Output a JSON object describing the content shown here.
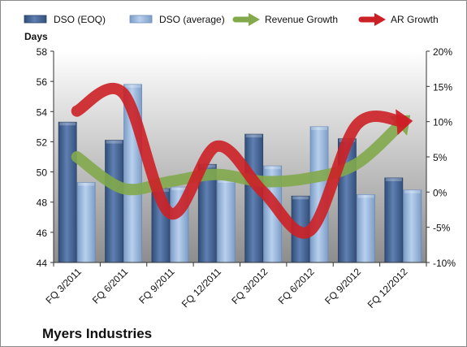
{
  "chart_data": {
    "type": "bar",
    "title": "",
    "company": "Myers Industries",
    "ylabel": "Days",
    "ylim": [
      44,
      58
    ],
    "yticks": [
      44,
      46,
      48,
      50,
      52,
      54,
      56,
      58
    ],
    "y2lim": [
      -10,
      20
    ],
    "y2ticks": [
      "-10%",
      "-5%",
      "0%",
      "5%",
      "10%",
      "15%",
      "20%"
    ],
    "categories": [
      "FQ 3/2011",
      "FQ 6/2011",
      "FQ 9/2011",
      "FQ 12/2011",
      "FQ 3/2012",
      "FQ 6/2012",
      "FQ 9/2012",
      "FQ 12/2012"
    ],
    "series": [
      {
        "name": "DSO (EOQ)",
        "type": "bar",
        "axis": "left",
        "color": "#4a6a98",
        "values": [
          53.3,
          52.1,
          48.9,
          50.5,
          52.5,
          48.4,
          52.2,
          49.6
        ]
      },
      {
        "name": "DSO (average)",
        "type": "bar",
        "axis": "left",
        "color": "#9cbbe0",
        "values": [
          49.3,
          55.8,
          49.0,
          49.5,
          50.4,
          53.0,
          48.5,
          48.8
        ]
      },
      {
        "name": "Revenue Growth",
        "type": "line",
        "axis": "right",
        "color": "#82a94c",
        "values": [
          5.0,
          0.5,
          1.5,
          2.5,
          1.5,
          2.0,
          4.0,
          10.0
        ]
      },
      {
        "name": "AR Growth",
        "type": "line",
        "axis": "right",
        "color": "#cc2026",
        "values": [
          11.5,
          14.0,
          -3.0,
          6.5,
          0.0,
          -5.5,
          9.5,
          10.0
        ]
      }
    ],
    "legend_position": "top",
    "grid": false
  }
}
